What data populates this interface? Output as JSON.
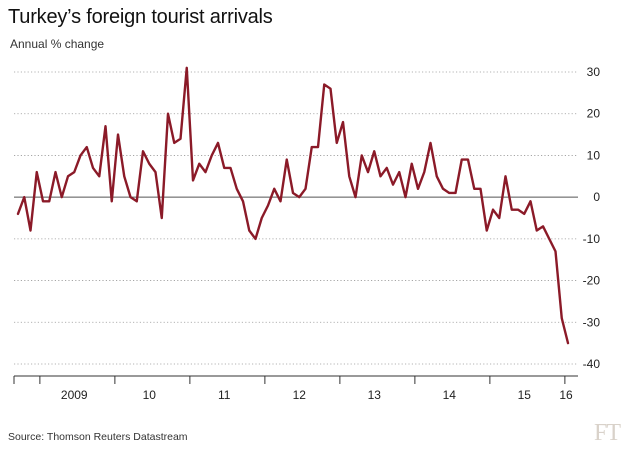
{
  "title": "Turkey’s foreign tourist arrivals",
  "subtitle": "Annual % change",
  "source": "Source: Thomson Reuters Datastream",
  "brand": "FT",
  "colors": {
    "line": "#8b1a28",
    "grid": "#9a9a9a",
    "zero": "#555555"
  },
  "chart_data": {
    "type": "line",
    "title": "Turkey’s foreign tourist arrivals",
    "subtitle": "Annual % change",
    "xlabel": "",
    "ylabel": "",
    "ylim": [
      -40,
      30
    ],
    "yticks": [
      30,
      20,
      10,
      0,
      -10,
      -20,
      -30,
      -40
    ],
    "xtick_labels": [
      "2009",
      "10",
      "11",
      "12",
      "13",
      "14",
      "15",
      "16"
    ],
    "grid": "horizontal dotted",
    "frequency": "monthly",
    "start": "2008-09",
    "series": [
      {
        "values": [
          -4,
          0,
          -8,
          6,
          -1,
          -1,
          6,
          0,
          5,
          6,
          10,
          12,
          7,
          5,
          17,
          -1,
          15,
          5,
          0,
          -1,
          11,
          8,
          6,
          -5,
          20,
          13,
          14,
          31,
          4,
          8,
          6,
          10,
          13,
          7,
          7,
          2,
          -1,
          -8,
          -10,
          -5,
          -2,
          2,
          -1,
          9,
          1,
          0,
          2,
          12,
          12,
          27,
          26,
          13,
          18,
          5,
          0,
          10,
          6,
          11,
          5,
          7,
          3,
          6,
          0,
          8,
          2,
          6,
          13,
          5,
          2,
          1,
          1,
          9,
          9,
          2,
          2,
          -8,
          -3,
          -5,
          5,
          -3,
          -3,
          -4,
          -1,
          -8,
          -7,
          -10,
          -13,
          -29,
          -35
        ]
      }
    ]
  }
}
